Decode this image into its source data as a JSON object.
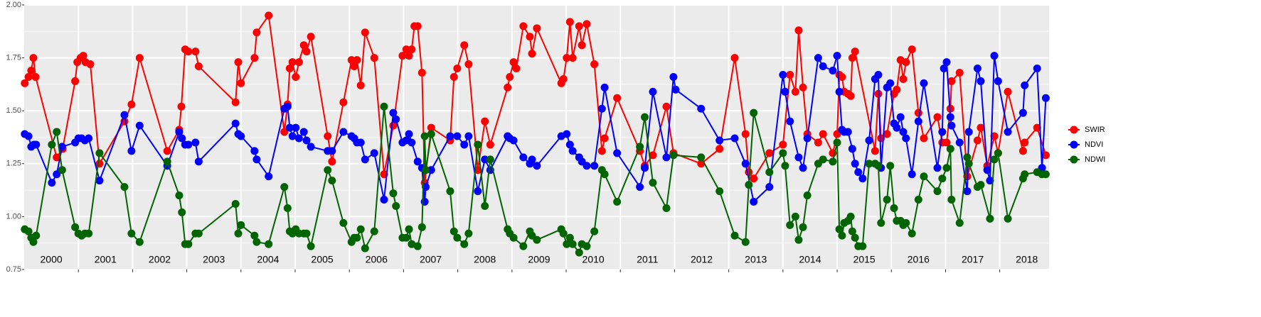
{
  "chart_data": {
    "type": "line",
    "xlim": [
      2000,
      2018.91
    ],
    "xticks": [
      2001,
      2002,
      2003,
      2004,
      2005,
      2006,
      2007,
      2008,
      2009,
      2010,
      2011,
      2012,
      2013,
      2014,
      2015,
      2016,
      2017,
      2018
    ],
    "year_labels": [
      "2000",
      "2001",
      "2002",
      "2003",
      "2004",
      "2005",
      "2006",
      "2007",
      "2008",
      "2009",
      "2010",
      "2011",
      "2012",
      "2013",
      "2014",
      "2015",
      "2016",
      "2017",
      "2018"
    ],
    "ylim": [
      0.75,
      2.0
    ],
    "yticks": [
      0.75,
      {
        "value": 1.0,
        "label": "1.00"
      },
      1.25,
      {
        "value": 1.5,
        "label": "1.50"
      },
      1.75,
      {
        "value": 2.0,
        "label": "2.00"
      }
    ],
    "grid": true,
    "legend": "right",
    "series": [
      {
        "name": "SWIR",
        "color": "#ff0000",
        "x": [
          2000.01,
          2000.08,
          2000.13,
          2000.17,
          2000.21,
          2000.6,
          2000.71,
          2000.94,
          2000.98,
          2001.04,
          2001.09,
          2001.13,
          2001.22,
          2001.39,
          2001.85,
          2001.98,
          2002.13,
          2002.64,
          2002.86,
          2002.9,
          2002.97,
          2003.03,
          2003.16,
          2003.22,
          2003.9,
          2003.95,
          2004.0,
          2004.25,
          2004.29,
          2004.51,
          2004.8,
          2004.86,
          2004.9,
          2004.95,
          2005.01,
          2005.07,
          2005.16,
          2005.21,
          2005.29,
          2005.6,
          2005.68,
          2005.89,
          2006.04,
          2006.09,
          2006.14,
          2006.21,
          2006.29,
          2006.46,
          2006.64,
          2006.81,
          2006.98,
          2007.05,
          2007.1,
          2007.15,
          2007.2,
          2007.26,
          2007.34,
          2007.39,
          2007.51,
          2007.86,
          2007.93,
          2007.99,
          2008.12,
          2008.2,
          2008.37,
          2008.5,
          2008.6,
          2008.92,
          2008.96,
          2009.03,
          2009.08,
          2009.21,
          2009.33,
          2009.37,
          2009.46,
          2009.91,
          2009.95,
          2010.01,
          2010.07,
          2010.12,
          2010.24,
          2010.29,
          2010.38,
          2010.52,
          2010.66,
          2010.71,
          2010.94,
          2011.36,
          2011.45,
          2011.6,
          2011.85,
          2011.98,
          2012.49,
          2012.83,
          2013.11,
          2013.31,
          2013.37,
          2013.46,
          2013.75,
          2014.0,
          2014.13,
          2014.23,
          2014.29,
          2014.37,
          2014.45,
          2014.65,
          2014.74,
          2014.92,
          2015.0,
          2015.04,
          2015.09,
          2015.13,
          2015.2,
          2015.25,
          2015.28,
          2015.33,
          2015.7,
          2015.76,
          2015.81,
          2015.92,
          2016.05,
          2016.1,
          2016.17,
          2016.22,
          2016.27,
          2016.38,
          2016.5,
          2016.6,
          2016.85,
          2016.94,
          2017.02,
          2017.09,
          2017.11,
          2017.26,
          2017.4,
          2017.59,
          2017.65,
          2017.77,
          2017.9,
          2017.97,
          2018.15,
          2018.43,
          2018.46,
          2018.69,
          2018.85
        ],
        "values": [
          1.63,
          1.66,
          1.69,
          1.75,
          1.66,
          1.28,
          1.32,
          1.64,
          1.73,
          1.75,
          1.76,
          1.73,
          1.72,
          1.25,
          1.45,
          1.53,
          1.75,
          1.31,
          1.41,
          1.52,
          1.79,
          1.78,
          1.78,
          1.71,
          1.54,
          1.73,
          1.63,
          1.75,
          1.87,
          1.95,
          1.4,
          1.53,
          1.7,
          1.73,
          1.66,
          1.73,
          1.81,
          1.78,
          1.85,
          1.38,
          1.26,
          1.54,
          1.74,
          1.71,
          1.74,
          1.62,
          1.87,
          1.75,
          1.2,
          1.43,
          1.76,
          1.79,
          1.76,
          1.79,
          1.9,
          1.9,
          1.68,
          1.16,
          1.42,
          1.36,
          1.66,
          1.7,
          1.81,
          1.72,
          1.22,
          1.45,
          1.34,
          1.61,
          1.66,
          1.73,
          1.7,
          1.9,
          1.85,
          1.77,
          1.89,
          1.63,
          1.65,
          1.75,
          1.92,
          1.75,
          1.9,
          1.81,
          1.91,
          1.72,
          1.31,
          1.37,
          1.56,
          1.31,
          1.24,
          1.29,
          1.52,
          1.3,
          1.25,
          1.32,
          1.75,
          1.39,
          1.21,
          1.18,
          1.3,
          1.34,
          1.67,
          1.59,
          1.88,
          1.61,
          1.39,
          1.35,
          1.39,
          1.3,
          1.39,
          1.67,
          1.66,
          1.59,
          1.58,
          1.57,
          1.75,
          1.78,
          1.31,
          1.58,
          1.37,
          1.39,
          1.58,
          1.6,
          1.74,
          1.65,
          1.73,
          1.79,
          1.49,
          1.37,
          1.47,
          1.35,
          1.35,
          1.51,
          1.64,
          1.68,
          1.19,
          1.36,
          1.42,
          1.24,
          1.38,
          1.3,
          1.59,
          1.31,
          1.35,
          1.42,
          1.29
        ]
      },
      {
        "name": "NDVI",
        "color": "#0000ff",
        "x": [
          2000.01,
          2000.08,
          2000.13,
          2000.18,
          2000.22,
          2000.51,
          2000.6,
          2000.7,
          2000.94,
          2001.0,
          2001.06,
          2001.12,
          2001.19,
          2001.39,
          2001.85,
          2001.98,
          2002.13,
          2002.64,
          2002.86,
          2002.91,
          2002.97,
          2003.03,
          2003.16,
          2003.22,
          2003.9,
          2003.95,
          2004.0,
          2004.25,
          2004.29,
          2004.51,
          2004.8,
          2004.86,
          2004.9,
          2004.95,
          2005.01,
          2005.07,
          2005.16,
          2005.21,
          2005.29,
          2005.6,
          2005.68,
          2005.89,
          2006.04,
          2006.09,
          2006.14,
          2006.21,
          2006.29,
          2006.46,
          2006.64,
          2006.81,
          2006.86,
          2006.98,
          2007.05,
          2007.1,
          2007.15,
          2007.26,
          2007.34,
          2007.39,
          2007.41,
          2007.51,
          2007.86,
          2007.99,
          2008.12,
          2008.2,
          2008.37,
          2008.5,
          2008.6,
          2008.92,
          2008.96,
          2009.03,
          2009.21,
          2009.33,
          2009.37,
          2009.46,
          2009.91,
          2010.01,
          2010.07,
          2010.12,
          2010.24,
          2010.29,
          2010.38,
          2010.52,
          2010.66,
          2010.71,
          2010.94,
          2011.36,
          2011.45,
          2011.6,
          2011.85,
          2011.98,
          2012.02,
          2012.49,
          2012.83,
          2013.11,
          2013.31,
          2013.46,
          2013.75,
          2014.0,
          2014.04,
          2014.13,
          2014.29,
          2014.37,
          2014.45,
          2014.65,
          2014.74,
          2014.92,
          2015.0,
          2015.04,
          2015.09,
          2015.13,
          2015.2,
          2015.28,
          2015.33,
          2015.39,
          2015.47,
          2015.59,
          2015.7,
          2015.76,
          2015.81,
          2015.92,
          2015.98,
          2016.05,
          2016.1,
          2016.17,
          2016.22,
          2016.27,
          2016.38,
          2016.5,
          2016.6,
          2016.85,
          2016.94,
          2016.97,
          2017.02,
          2017.09,
          2017.11,
          2017.26,
          2017.4,
          2017.43,
          2017.59,
          2017.65,
          2017.77,
          2017.82,
          2017.9,
          2017.97,
          2018.15,
          2018.43,
          2018.46,
          2018.69,
          2018.78,
          2018.85
        ],
        "values": [
          1.39,
          1.38,
          1.33,
          1.34,
          1.34,
          1.16,
          1.2,
          1.33,
          1.35,
          1.37,
          1.37,
          1.36,
          1.37,
          1.17,
          1.48,
          1.31,
          1.43,
          1.24,
          1.4,
          1.37,
          1.34,
          1.34,
          1.35,
          1.26,
          1.44,
          1.39,
          1.38,
          1.31,
          1.27,
          1.19,
          1.51,
          1.52,
          1.42,
          1.38,
          1.42,
          1.37,
          1.4,
          1.36,
          1.33,
          1.31,
          1.31,
          1.4,
          1.38,
          1.37,
          1.35,
          1.35,
          1.27,
          1.3,
          1.08,
          1.49,
          1.46,
          1.35,
          1.36,
          1.39,
          1.35,
          1.26,
          1.23,
          1.07,
          1.14,
          1.22,
          1.38,
          1.38,
          1.34,
          1.38,
          1.12,
          1.27,
          1.22,
          1.38,
          1.37,
          1.36,
          1.28,
          1.25,
          1.27,
          1.24,
          1.38,
          1.39,
          1.34,
          1.31,
          1.28,
          1.26,
          1.24,
          1.24,
          1.51,
          1.61,
          1.3,
          1.14,
          1.23,
          1.59,
          1.28,
          1.66,
          1.6,
          1.51,
          1.36,
          1.37,
          1.25,
          1.07,
          1.14,
          1.67,
          1.59,
          1.45,
          1.28,
          1.23,
          1.37,
          1.75,
          1.71,
          1.69,
          1.76,
          1.59,
          1.41,
          1.4,
          1.4,
          1.32,
          1.25,
          1.21,
          1.18,
          1.36,
          1.65,
          1.67,
          1.23,
          1.61,
          1.63,
          1.44,
          1.42,
          1.47,
          1.4,
          1.37,
          1.2,
          1.45,
          1.63,
          1.23,
          1.4,
          1.7,
          1.73,
          1.47,
          1.43,
          1.35,
          1.12,
          1.4,
          1.7,
          1.64,
          1.22,
          1.17,
          1.76,
          1.64,
          1.4,
          1.49,
          1.62,
          1.7,
          1.23,
          1.56
        ]
      },
      {
        "name": "NDWI",
        "color": "#006400",
        "x": [
          2000.01,
          2000.08,
          2000.13,
          2000.17,
          2000.22,
          2000.51,
          2000.6,
          2000.7,
          2000.94,
          2001.0,
          2001.06,
          2001.12,
          2001.19,
          2001.39,
          2001.85,
          2001.98,
          2002.13,
          2002.64,
          2002.86,
          2002.91,
          2002.97,
          2003.03,
          2003.16,
          2003.22,
          2003.9,
          2003.95,
          2004.0,
          2004.25,
          2004.29,
          2004.51,
          2004.8,
          2004.86,
          2004.9,
          2004.95,
          2005.01,
          2005.07,
          2005.16,
          2005.21,
          2005.29,
          2005.6,
          2005.68,
          2005.89,
          2006.04,
          2006.09,
          2006.14,
          2006.21,
          2006.29,
          2006.46,
          2006.64,
          2006.81,
          2006.86,
          2006.98,
          2007.05,
          2007.1,
          2007.15,
          2007.26,
          2007.34,
          2007.39,
          2007.41,
          2007.51,
          2007.86,
          2007.93,
          2007.99,
          2008.12,
          2008.2,
          2008.37,
          2008.5,
          2008.6,
          2008.92,
          2008.96,
          2009.03,
          2009.21,
          2009.33,
          2009.37,
          2009.46,
          2009.91,
          2009.95,
          2010.01,
          2010.07,
          2010.12,
          2010.24,
          2010.29,
          2010.38,
          2010.52,
          2010.66,
          2010.71,
          2010.94,
          2011.36,
          2011.45,
          2011.6,
          2011.85,
          2011.98,
          2012.49,
          2012.83,
          2013.11,
          2013.31,
          2013.37,
          2013.46,
          2013.75,
          2014.0,
          2014.04,
          2014.13,
          2014.23,
          2014.29,
          2014.37,
          2014.45,
          2014.65,
          2014.74,
          2014.92,
          2015.0,
          2015.04,
          2015.09,
          2015.13,
          2015.2,
          2015.25,
          2015.28,
          2015.33,
          2015.39,
          2015.47,
          2015.59,
          2015.7,
          2015.76,
          2015.81,
          2015.92,
          2015.98,
          2016.05,
          2016.1,
          2016.17,
          2016.22,
          2016.27,
          2016.38,
          2016.5,
          2016.6,
          2016.85,
          2016.94,
          2017.02,
          2017.09,
          2017.11,
          2017.26,
          2017.4,
          2017.43,
          2017.59,
          2017.65,
          2017.82,
          2017.9,
          2017.97,
          2018.15,
          2018.43,
          2018.46,
          2018.69,
          2018.78,
          2018.85
        ],
        "values": [
          0.94,
          0.93,
          0.9,
          0.88,
          0.91,
          1.34,
          1.4,
          1.22,
          0.95,
          0.92,
          0.91,
          0.92,
          0.92,
          1.3,
          1.14,
          0.92,
          0.88,
          1.26,
          1.1,
          1.02,
          0.87,
          0.87,
          0.92,
          0.92,
          1.06,
          0.92,
          0.96,
          0.91,
          0.88,
          0.87,
          1.14,
          1.04,
          0.93,
          0.92,
          0.94,
          0.92,
          0.92,
          0.92,
          0.86,
          1.22,
          1.17,
          0.97,
          0.88,
          0.9,
          0.9,
          0.94,
          0.85,
          0.93,
          1.52,
          1.11,
          1.05,
          0.9,
          0.9,
          0.94,
          0.87,
          0.86,
          0.95,
          1.38,
          1.22,
          1.39,
          1.12,
          0.93,
          0.9,
          0.87,
          0.92,
          1.34,
          1.05,
          1.27,
          0.94,
          0.92,
          0.9,
          0.86,
          0.93,
          0.91,
          0.89,
          0.94,
          0.92,
          0.87,
          0.9,
          0.87,
          0.83,
          0.87,
          0.86,
          0.93,
          1.22,
          1.2,
          1.07,
          1.33,
          1.47,
          1.16,
          1.04,
          1.29,
          1.28,
          1.12,
          0.91,
          0.88,
          1.15,
          1.49,
          1.21,
          1.3,
          1.24,
          0.96,
          1.0,
          0.89,
          0.95,
          1.1,
          1.25,
          1.27,
          1.26,
          1.35,
          0.94,
          0.91,
          0.97,
          0.98,
          1.0,
          0.93,
          0.9,
          0.86,
          0.86,
          1.25,
          1.25,
          1.24,
          0.97,
          1.08,
          1.24,
          1.04,
          0.98,
          0.98,
          0.96,
          0.97,
          0.92,
          1.08,
          1.19,
          1.12,
          1.18,
          1.23,
          1.32,
          1.08,
          0.97,
          1.28,
          1.25,
          1.14,
          1.15,
          0.99,
          1.27,
          1.3,
          0.99,
          1.18,
          1.2,
          1.21,
          1.2,
          1.2
        ]
      }
    ]
  }
}
